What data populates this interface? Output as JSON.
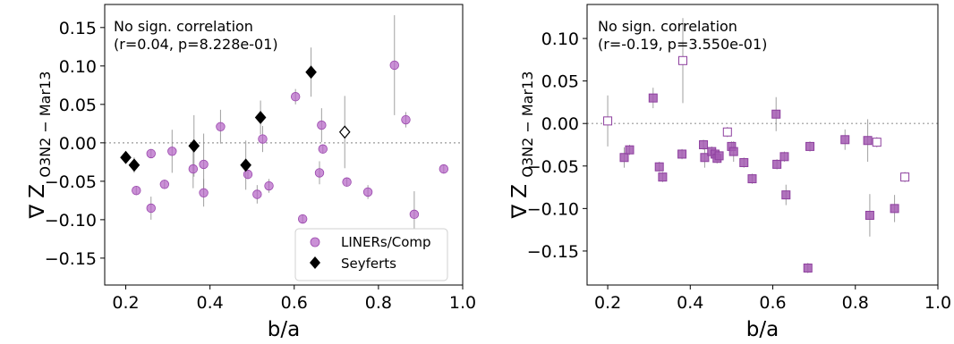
{
  "colors": {
    "liner": "#b565c6",
    "liner_edge": "#9a48ad",
    "seyfert": "#000000",
    "square": "#a35ab2",
    "square_edge": "#8d3f9e",
    "zero_line": "#999999",
    "errorbar": "#888888"
  },
  "chart_data": [
    {
      "type": "scatter",
      "xlabel": "b/a",
      "ylabel": "∇ Z",
      "ylabel_sub": "O3N2 − Mar13",
      "xlim": [
        0.15,
        1.0
      ],
      "ylim": [
        -0.185,
        0.18
      ],
      "xticks": [
        0.2,
        0.4,
        0.6,
        0.8,
        1.0
      ],
      "xtick_labels": [
        "0.2",
        "0.4",
        "0.6",
        "0.8",
        "1.0"
      ],
      "yticks": [
        0.15,
        0.1,
        0.05,
        0.0,
        -0.05,
        -0.1,
        -0.15
      ],
      "ytick_labels": [
        "0.15",
        "0.10",
        "0.05",
        "0.00",
        "−0.05",
        "−0.10",
        "−0.15"
      ],
      "annotation_line1": "No sign. correlation",
      "annotation_line2": "(r=0.04, p=8.228e-01)",
      "legend": {
        "placement": "lower-right",
        "entries": [
          "LINERs/Comp",
          "Seyferts"
        ]
      },
      "zero_line": true,
      "series": [
        {
          "name": "LINERs/Comp",
          "marker": "circle",
          "filled": true,
          "points": [
            {
              "x": 0.225,
              "y": -0.062,
              "err": 0.006
            },
            {
              "x": 0.26,
              "y": -0.014,
              "err": 0.006
            },
            {
              "x": 0.26,
              "y": -0.085,
              "err": 0.015
            },
            {
              "x": 0.292,
              "y": -0.054,
              "err": 0.006
            },
            {
              "x": 0.31,
              "y": -0.011,
              "err": 0.028
            },
            {
              "x": 0.36,
              "y": -0.034,
              "err": 0.025
            },
            {
              "x": 0.385,
              "y": -0.028,
              "err": 0.04
            },
            {
              "x": 0.385,
              "y": -0.065,
              "err": 0.018
            },
            {
              "x": 0.425,
              "y": 0.021,
              "err": 0.022
            },
            {
              "x": 0.49,
              "y": -0.041,
              "err": 0.006
            },
            {
              "x": 0.512,
              "y": -0.067,
              "err": 0.012
            },
            {
              "x": 0.525,
              "y": 0.005,
              "err": 0.017
            },
            {
              "x": 0.54,
              "y": -0.056,
              "err": 0.009
            },
            {
              "x": 0.603,
              "y": 0.06,
              "err": 0.01
            },
            {
              "x": 0.62,
              "y": -0.099,
              "err": 0.006
            },
            {
              "x": 0.66,
              "y": -0.039,
              "err": 0.015
            },
            {
              "x": 0.665,
              "y": 0.023,
              "err": 0.022
            },
            {
              "x": 0.668,
              "y": -0.008,
              "err": 0.006
            },
            {
              "x": 0.725,
              "y": -0.051,
              "err": 0.006
            },
            {
              "x": 0.775,
              "y": -0.064,
              "err": 0.009
            },
            {
              "x": 0.838,
              "y": 0.101,
              "err": 0.065
            },
            {
              "x": 0.865,
              "y": 0.03,
              "err": 0.01
            },
            {
              "x": 0.885,
              "y": -0.093,
              "err": 0.03
            },
            {
              "x": 0.955,
              "y": -0.034,
              "err": 0.006
            }
          ]
        },
        {
          "name": "Seyferts",
          "marker": "diamond",
          "filled": true,
          "points": [
            {
              "x": 0.2,
              "y": -0.019,
              "err": 0.006
            },
            {
              "x": 0.22,
              "y": -0.029,
              "err": 0.01
            },
            {
              "x": 0.362,
              "y": -0.004,
              "err": 0.04
            },
            {
              "x": 0.485,
              "y": -0.029,
              "err": 0.032
            },
            {
              "x": 0.52,
              "y": 0.033,
              "err": 0.022
            },
            {
              "x": 0.64,
              "y": 0.092,
              "err": 0.032
            }
          ]
        },
        {
          "marker": "diamond",
          "filled": false,
          "points": [
            {
              "x": 0.72,
              "y": 0.014,
              "err": 0.047
            }
          ]
        }
      ]
    },
    {
      "type": "scatter",
      "xlabel": "b/a",
      "ylabel": "∇ Z",
      "ylabel_sub": "O3N2 − Mar13",
      "xlim": [
        0.15,
        1.0
      ],
      "ylim": [
        -0.19,
        0.14
      ],
      "xticks": [
        0.2,
        0.4,
        0.6,
        0.8,
        1.0
      ],
      "xtick_labels": [
        "0.2",
        "0.4",
        "0.6",
        "0.8",
        "1.0"
      ],
      "yticks": [
        0.1,
        0.05,
        0.0,
        -0.05,
        -0.1,
        -0.15
      ],
      "ytick_labels": [
        "0.10",
        "0.05",
        "0.00",
        "−0.05",
        "−0.10",
        "−0.15"
      ],
      "annotation_line1": "No sign. correlation",
      "annotation_line2": "(r=-0.19, p=3.550e-01)",
      "zero_line": true,
      "series": [
        {
          "marker": "square",
          "filled": true,
          "points": [
            {
              "x": 0.24,
              "y": -0.04,
              "err": 0.012
            },
            {
              "x": 0.253,
              "y": -0.031,
              "err": 0.006
            },
            {
              "x": 0.31,
              "y": 0.03,
              "err": 0.012
            },
            {
              "x": 0.325,
              "y": -0.051,
              "err": 0.006
            },
            {
              "x": 0.333,
              "y": -0.063,
              "err": 0.006
            },
            {
              "x": 0.38,
              "y": -0.036,
              "err": 0.006
            },
            {
              "x": 0.432,
              "y": -0.025,
              "err": 0.006
            },
            {
              "x": 0.435,
              "y": -0.04,
              "err": 0.012
            },
            {
              "x": 0.452,
              "y": -0.033,
              "err": 0.006
            },
            {
              "x": 0.46,
              "y": -0.036,
              "err": 0.006
            },
            {
              "x": 0.465,
              "y": -0.041,
              "err": 0.006
            },
            {
              "x": 0.47,
              "y": -0.038,
              "err": 0.006
            },
            {
              "x": 0.5,
              "y": -0.027,
              "err": 0.006
            },
            {
              "x": 0.505,
              "y": -0.033,
              "err": 0.012
            },
            {
              "x": 0.53,
              "y": -0.046,
              "err": 0.006
            },
            {
              "x": 0.55,
              "y": -0.065,
              "err": 0.006
            },
            {
              "x": 0.608,
              "y": 0.011,
              "err": 0.02
            },
            {
              "x": 0.61,
              "y": -0.048,
              "err": 0.006
            },
            {
              "x": 0.628,
              "y": -0.039,
              "err": 0.006
            },
            {
              "x": 0.632,
              "y": -0.084,
              "err": 0.012
            },
            {
              "x": 0.685,
              "y": -0.17,
              "err": 0.006
            },
            {
              "x": 0.69,
              "y": -0.027,
              "err": 0.006
            },
            {
              "x": 0.775,
              "y": -0.019,
              "err": 0.012
            },
            {
              "x": 0.83,
              "y": -0.02,
              "err": 0.025
            },
            {
              "x": 0.835,
              "y": -0.108,
              "err": 0.025
            },
            {
              "x": 0.895,
              "y": -0.1,
              "err": 0.016
            }
          ]
        },
        {
          "marker": "square",
          "filled": false,
          "points": [
            {
              "x": 0.2,
              "y": 0.003,
              "err": 0.03
            },
            {
              "x": 0.382,
              "y": 0.074,
              "err": 0.05
            },
            {
              "x": 0.49,
              "y": -0.01,
              "err": 0.006
            },
            {
              "x": 0.852,
              "y": -0.022,
              "err": 0.006
            },
            {
              "x": 0.92,
              "y": -0.063,
              "err": 0.006
            }
          ]
        }
      ]
    }
  ]
}
